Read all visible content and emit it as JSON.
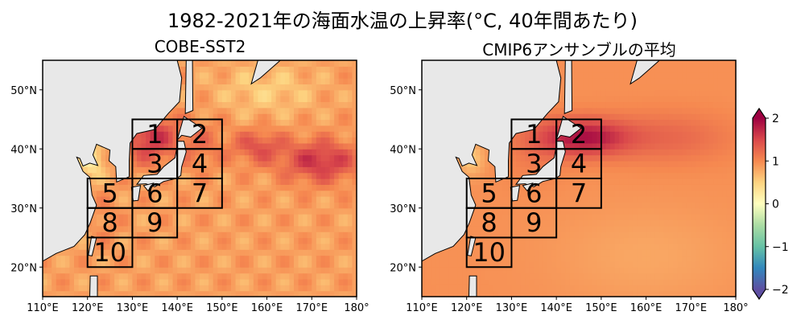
{
  "title": "1982-2021年の海面水温の上昇率(°C, 40年間あたり)",
  "chart_data": {
    "type": "heatmap",
    "panels": [
      {
        "title": "COBE-SST2"
      },
      {
        "title": "CMIP6アンサンブルの平均"
      }
    ],
    "xlim": [
      110,
      180
    ],
    "ylim": [
      15,
      55
    ],
    "x_ticks": [
      "110°E",
      "120°E",
      "130°E",
      "140°E",
      "150°E",
      "160°E",
      "170°E",
      "180°"
    ],
    "y_ticks": [
      "20°N",
      "30°N",
      "40°N",
      "50°N"
    ],
    "colorbar": {
      "range": [
        -2,
        2
      ],
      "ticks": [
        "2",
        "1",
        "0",
        "−1",
        "−2"
      ],
      "extend": "both",
      "colormap": "Spectral_r"
    },
    "land_color": "#e8e8e8",
    "regions": [
      {
        "label": "1",
        "lon": [
          130,
          140
        ],
        "lat": [
          40,
          45
        ]
      },
      {
        "label": "2",
        "lon": [
          140,
          150
        ],
        "lat": [
          40,
          45
        ]
      },
      {
        "label": "3",
        "lon": [
          130,
          140
        ],
        "lat": [
          35,
          40
        ]
      },
      {
        "label": "4",
        "lon": [
          140,
          150
        ],
        "lat": [
          35,
          40
        ]
      },
      {
        "label": "5",
        "lon": [
          120,
          130
        ],
        "lat": [
          30,
          35
        ]
      },
      {
        "label": "6",
        "lon": [
          130,
          140
        ],
        "lat": [
          30,
          35
        ]
      },
      {
        "label": "7",
        "lon": [
          140,
          150
        ],
        "lat": [
          30,
          35
        ]
      },
      {
        "label": "8",
        "lon": [
          120,
          130
        ],
        "lat": [
          25,
          30
        ]
      },
      {
        "label": "9",
        "lon": [
          130,
          140
        ],
        "lat": [
          25,
          30
        ]
      },
      {
        "label": "10",
        "lon": [
          120,
          130
        ],
        "lat": [
          20,
          25
        ]
      }
    ]
  }
}
